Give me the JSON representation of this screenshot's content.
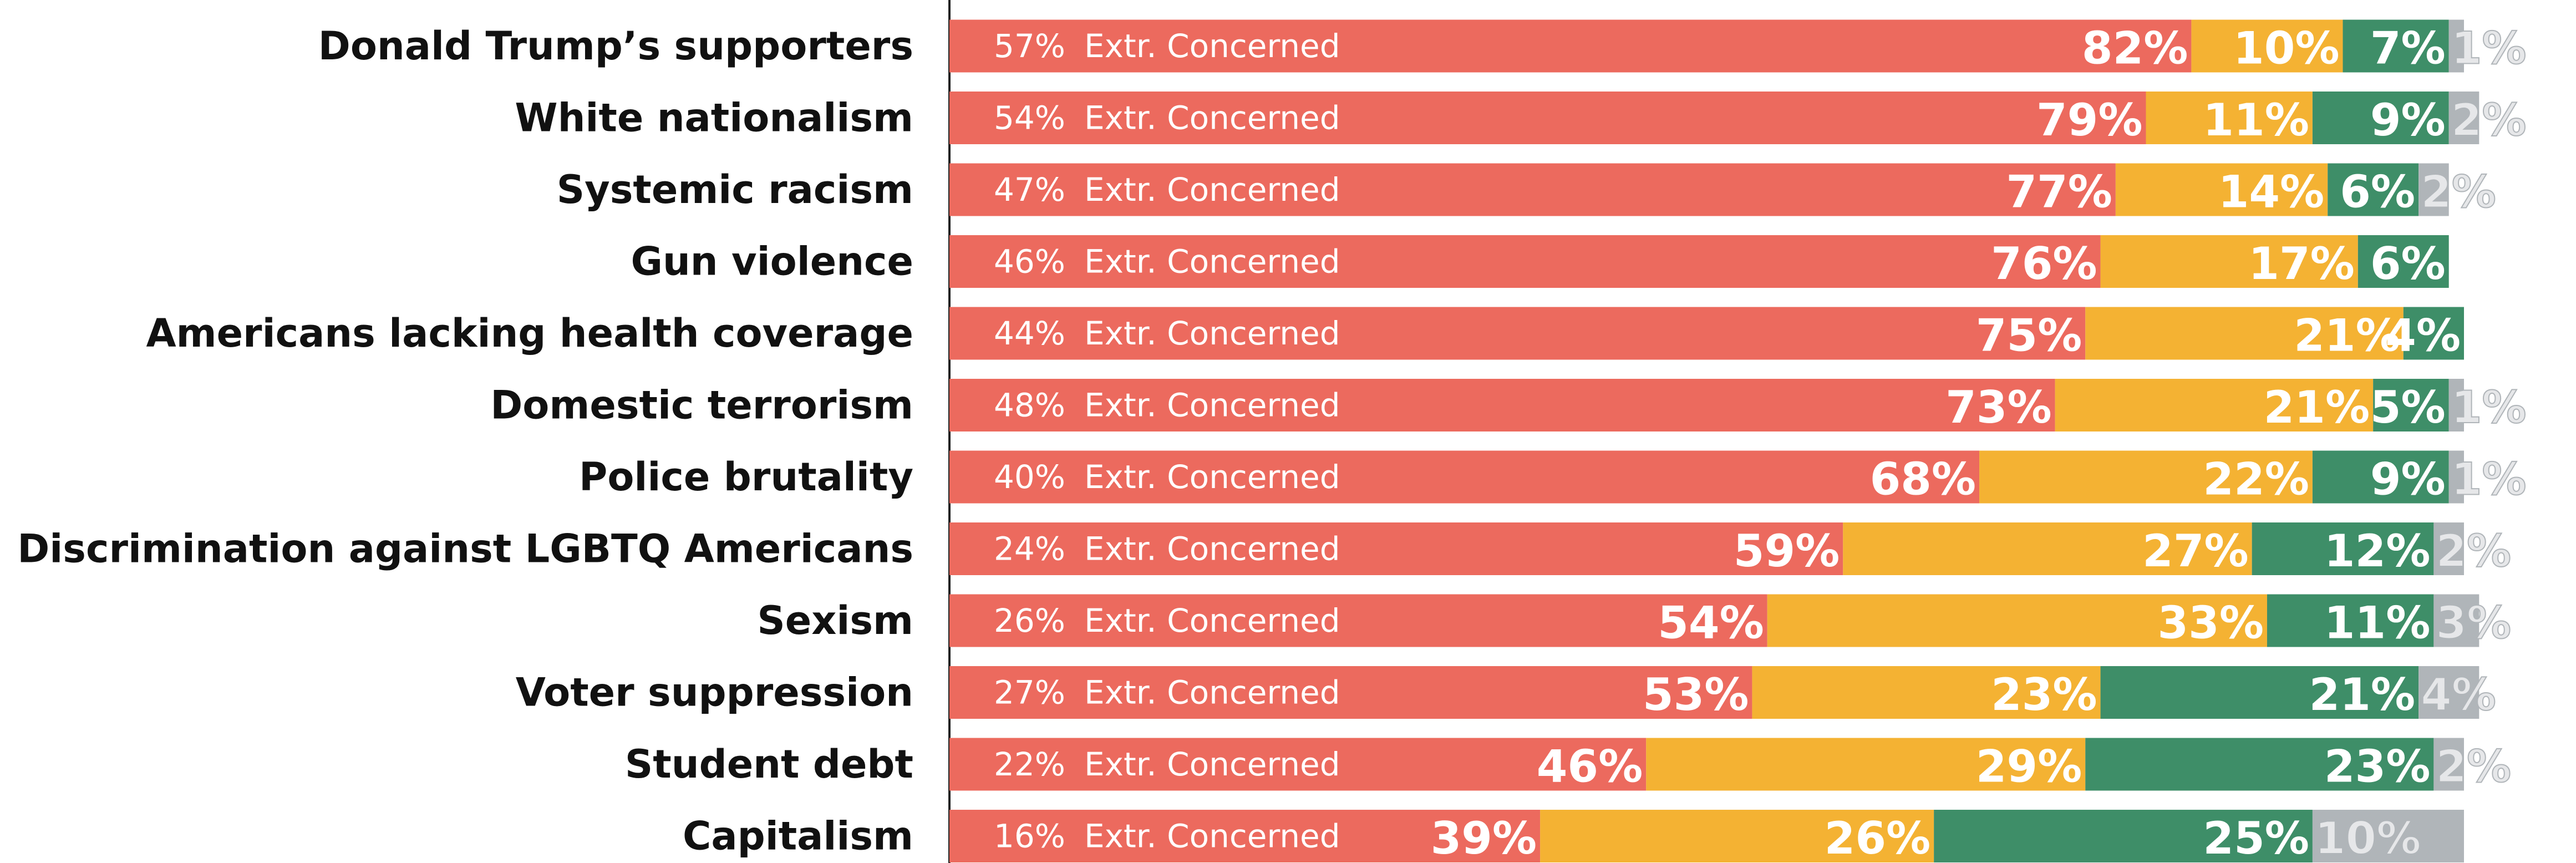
{
  "chart_data": {
    "type": "stacked-bar-horizontal",
    "categories": [
      "Donald Trump’s supporters",
      "White nationalism",
      "Systemic racism",
      "Gun violence",
      "Americans lacking health coverage",
      "Domestic terrorism",
      "Police brutality",
      "Discrimination against LGBTQ Americans",
      "Sexism",
      "Voter suppression",
      "Student debt",
      "Capitalism"
    ],
    "xlim": [
      0,
      100
    ],
    "series": [
      {
        "color": "#ec6a5e",
        "values": [
          82,
          79,
          77,
          76,
          75,
          73,
          68,
          59,
          54,
          53,
          46,
          39
        ],
        "value_labels": [
          "82%",
          "79%",
          "77%",
          "76%",
          "75%",
          "73%",
          "68%",
          "59%",
          "54%",
          "53%",
          "46%",
          "39%"
        ]
      },
      {
        "color": "#f4b233",
        "values": [
          10,
          11,
          14,
          17,
          21,
          21,
          22,
          27,
          33,
          23,
          29,
          26
        ],
        "value_labels": [
          "10%",
          "11%",
          "14%",
          "17%",
          "21%",
          "21%",
          "22%",
          "27%",
          "33%",
          "23%",
          "29%",
          "26%"
        ]
      },
      {
        "color": "#3e8e68",
        "values": [
          7,
          9,
          6,
          6,
          4,
          5,
          9,
          12,
          11,
          21,
          23,
          25
        ],
        "value_labels": [
          "7%",
          "9%",
          "6%",
          "6%",
          "4%",
          "5%",
          "9%",
          "12%",
          "11%",
          "21%",
          "23%",
          "25%"
        ]
      },
      {
        "color": "#b0b5b9",
        "values": [
          1,
          2,
          2,
          null,
          null,
          1,
          1,
          2,
          3,
          4,
          2,
          10
        ],
        "value_labels": [
          "1%",
          "2%",
          "2%",
          null,
          null,
          "1%",
          "1%",
          "2%",
          "3%",
          "4%",
          "2%",
          "10%"
        ]
      }
    ],
    "extr_concerned": {
      "label": "Extr. Concerned",
      "values": [
        57,
        54,
        47,
        46,
        44,
        48,
        40,
        24,
        26,
        27,
        22,
        16
      ],
      "value_labels": [
        "57%",
        "54%",
        "47%",
        "46%",
        "44%",
        "48%",
        "40%",
        "24%",
        "26%",
        "27%",
        "22%",
        "16%"
      ]
    }
  }
}
